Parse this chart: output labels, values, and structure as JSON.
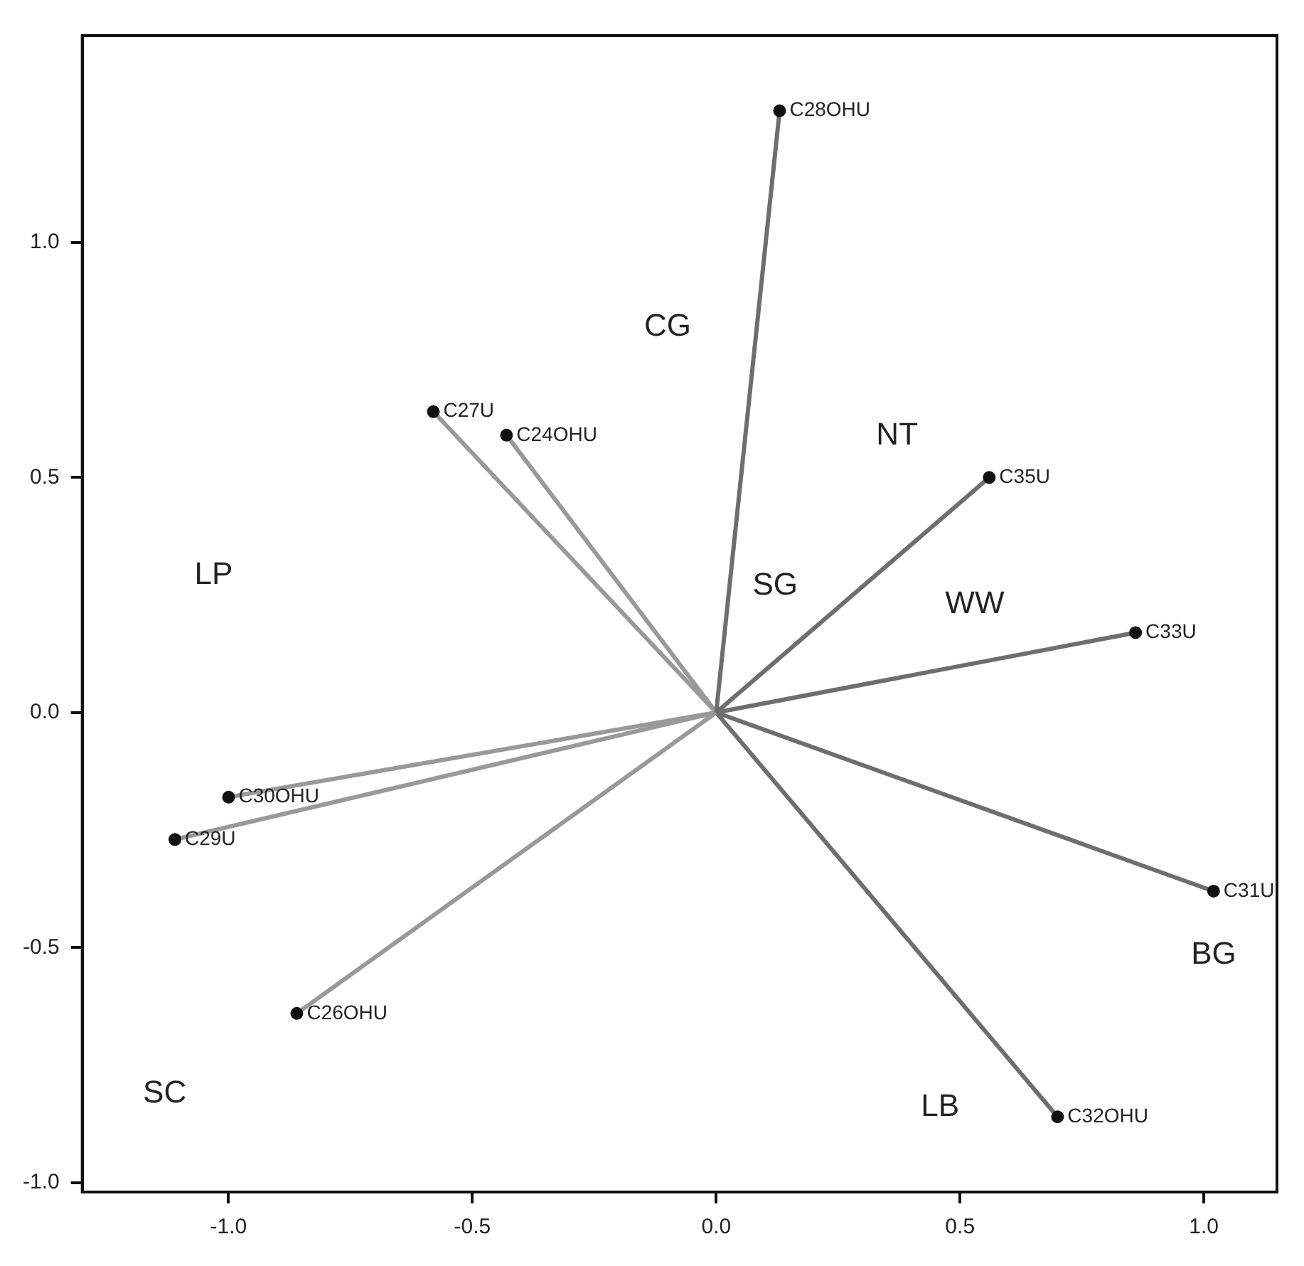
{
  "chart_data": {
    "type": "line",
    "xlim": [
      -1.3,
      1.15
    ],
    "ylim": [
      -1.02,
      1.44
    ],
    "xticks": [
      {
        "value": -1,
        "label": "-1.0"
      },
      {
        "value": -0.5,
        "label": "-0.5"
      },
      {
        "value": 0,
        "label": "0.0"
      },
      {
        "value": 0.5,
        "label": "0.5"
      },
      {
        "value": 1,
        "label": "1.0"
      }
    ],
    "yticks": [
      {
        "value": -1,
        "label": "-1.0"
      },
      {
        "value": -0.5,
        "label": "-0.5"
      },
      {
        "value": 0,
        "label": "0.0"
      },
      {
        "value": 0.5,
        "label": "0.5"
      },
      {
        "value": 1,
        "label": "1.0"
      }
    ],
    "marker": "circle",
    "series": [
      {
        "name": "C28OHU",
        "color": "#6e6e6e",
        "x": [
          0,
          0.13
        ],
        "values": [
          0,
          1.28
        ]
      },
      {
        "name": "C27U",
        "color": "#999999",
        "x": [
          0,
          -0.58
        ],
        "values": [
          0,
          0.64
        ]
      },
      {
        "name": "C24OHU",
        "color": "#999999",
        "x": [
          0,
          -0.43
        ],
        "values": [
          0,
          0.59
        ]
      },
      {
        "name": "C35U",
        "color": "#6e6e6e",
        "x": [
          0,
          0.56
        ],
        "values": [
          0,
          0.5
        ]
      },
      {
        "name": "C33U",
        "color": "#6e6e6e",
        "x": [
          0,
          0.86
        ],
        "values": [
          0,
          0.17
        ]
      },
      {
        "name": "C30OHU",
        "color": "#999999",
        "x": [
          0,
          -1.0
        ],
        "values": [
          0,
          -0.18
        ]
      },
      {
        "name": "C29U",
        "color": "#999999",
        "x": [
          0,
          -1.11
        ],
        "values": [
          0,
          -0.27
        ]
      },
      {
        "name": "C31U",
        "color": "#6e6e6e",
        "x": [
          0,
          1.02
        ],
        "values": [
          0,
          -0.38
        ]
      },
      {
        "name": "C26OHU",
        "color": "#999999",
        "x": [
          0,
          -0.86
        ],
        "values": [
          0,
          -0.64
        ]
      },
      {
        "name": "C32OHU",
        "color": "#6e6e6e",
        "x": [
          0,
          0.7
        ],
        "values": [
          0,
          -0.86
        ]
      }
    ],
    "annotations": [
      "CG",
      "NT",
      "SG",
      "WW",
      "LP",
      "BG",
      "LB",
      "SC"
    ]
  }
}
